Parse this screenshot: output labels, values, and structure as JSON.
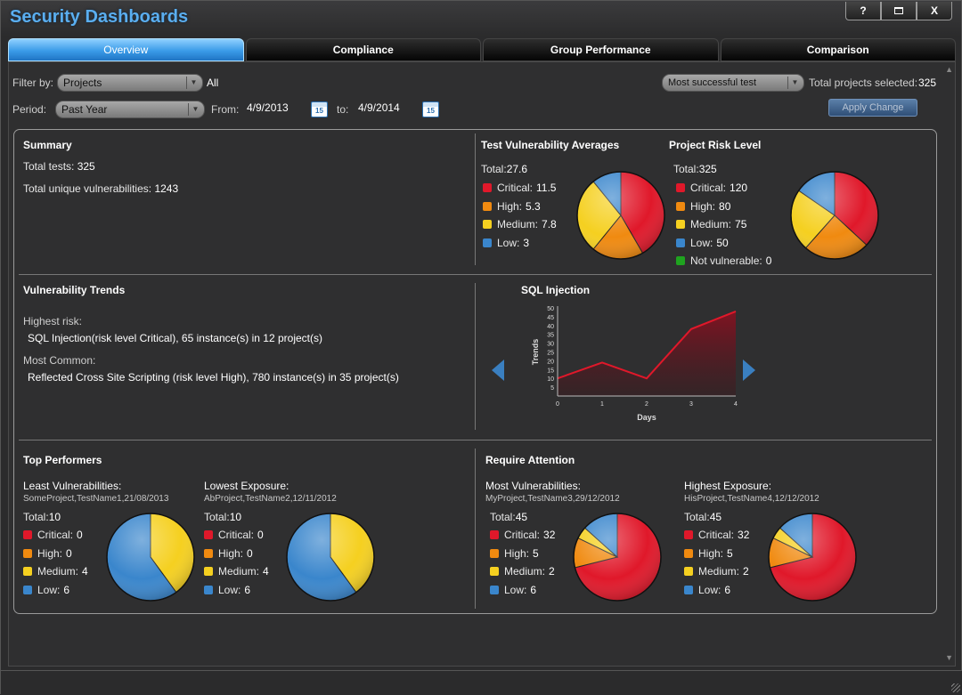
{
  "app": {
    "title": "Security Dashboards",
    "window_buttons": {
      "help": "?",
      "maximize": "□",
      "close": "X"
    }
  },
  "tabs": [
    {
      "label": "Overview",
      "active": true
    },
    {
      "label": "Compliance"
    },
    {
      "label": "Group Performance"
    },
    {
      "label": "Comparison"
    }
  ],
  "filters": {
    "filter_label": "Filter by:",
    "filter_value": "Projects",
    "filter_all": "All",
    "period_label": "Period:",
    "period_value": "Past Year",
    "from_label": "From:",
    "from_value": "4/9/2013",
    "to_label": "to:",
    "to_value": "4/9/2014",
    "calendar_day": "15",
    "sort_value": "Most successful test",
    "total_selected_label": "Total projects selected:",
    "total_selected_value": "325",
    "apply_label": "Apply Change"
  },
  "colors": {
    "critical": "#e0182a",
    "high": "#f08a10",
    "medium": "#f5d020",
    "low": "#3a86cc",
    "notvuln": "#1fa31f",
    "accent": "#5aaef0"
  },
  "summary": {
    "title": "Summary",
    "total_tests_label": "Total tests:",
    "total_tests": "325",
    "unique_vuln_label": "Total unique vulnerabilities:",
    "unique_vuln": "1243"
  },
  "test_vuln": {
    "title": "Test Vulnerability Averages",
    "total_label": "Total:",
    "total": "27.6",
    "items": [
      {
        "label": "Critical:",
        "value": "11.5",
        "n": 11.5
      },
      {
        "label": "High:",
        "value": "5.3",
        "n": 5.3
      },
      {
        "label": "Medium:",
        "value": "7.8",
        "n": 7.8
      },
      {
        "label": "Low:",
        "value": "3",
        "n": 3
      }
    ]
  },
  "risk_level": {
    "title": "Project Risk Level",
    "total_label": "Total:",
    "total": "325",
    "items": [
      {
        "label": "Critical:",
        "value": "120",
        "n": 120
      },
      {
        "label": "High:",
        "value": "80",
        "n": 80
      },
      {
        "label": "Medium:",
        "value": "75",
        "n": 75
      },
      {
        "label": "Low:",
        "value": "50",
        "n": 50
      },
      {
        "label": "Not vulnerable:",
        "value": "0",
        "n": 0
      }
    ]
  },
  "trends": {
    "title": "Vulnerability Trends",
    "highest_label": "Highest risk:",
    "highest_text": "SQL Injection(risk level Critical), 65 instance(s) in 12 project(s)",
    "common_label": "Most Common:",
    "common_text": "Reflected Cross Site Scripting (risk level High), 780 instance(s) in 35 project(s)"
  },
  "chart_data": {
    "type": "area",
    "title": "SQL Injection",
    "xlabel": "Days",
    "ylabel": "Trends",
    "x": [
      0,
      1,
      2,
      3,
      4
    ],
    "values": [
      10,
      19,
      10,
      38,
      48
    ],
    "xlim": [
      0,
      4
    ],
    "ylim": [
      0,
      50
    ],
    "yticks": [
      5,
      10,
      15,
      20,
      25,
      30,
      35,
      40,
      45,
      50
    ],
    "xticks": [
      0,
      1,
      2,
      3,
      4
    ],
    "color": "#e0182a"
  },
  "top": {
    "title": "Top Performers",
    "least": {
      "title": "Least Vulnerabilities:",
      "sub": "SomeProject,TestName1,21/08/2013",
      "total_label": "Total:",
      "total": "10",
      "items": [
        {
          "label": "Critical:",
          "value": "0",
          "n": 0
        },
        {
          "label": "High:",
          "value": "0",
          "n": 0
        },
        {
          "label": "Medium:",
          "value": "4",
          "n": 4
        },
        {
          "label": "Low:",
          "value": "6",
          "n": 6
        }
      ]
    },
    "lowest": {
      "title": "Lowest Exposure:",
      "sub": "AbProject,TestName2,12/11/2012",
      "total_label": "Total:",
      "total": "10",
      "items": [
        {
          "label": "Critical:",
          "value": "0",
          "n": 0
        },
        {
          "label": "High:",
          "value": "0",
          "n": 0
        },
        {
          "label": "Medium:",
          "value": "4",
          "n": 4
        },
        {
          "label": "Low:",
          "value": "6",
          "n": 6
        }
      ]
    }
  },
  "attention": {
    "title": "Require Attention",
    "most": {
      "title": "Most Vulnerabilities:",
      "sub": "MyProject,TestName3,29/12/2012",
      "total_label": "Total:",
      "total": "45",
      "items": [
        {
          "label": "Critical:",
          "value": "32",
          "n": 32
        },
        {
          "label": "High:",
          "value": "5",
          "n": 5
        },
        {
          "label": "Medium:",
          "value": "2",
          "n": 2
        },
        {
          "label": "Low:",
          "value": "6",
          "n": 6
        }
      ]
    },
    "highest": {
      "title": "Highest Exposure:",
      "sub": "HisProject,TestName4,12/12/2012",
      "total_label": "Total:",
      "total": "45",
      "items": [
        {
          "label": "Critical:",
          "value": "32",
          "n": 32
        },
        {
          "label": "High:",
          "value": "5",
          "n": 5
        },
        {
          "label": "Medium:",
          "value": "2",
          "n": 2
        },
        {
          "label": "Low:",
          "value": "6",
          "n": 6
        }
      ]
    }
  }
}
